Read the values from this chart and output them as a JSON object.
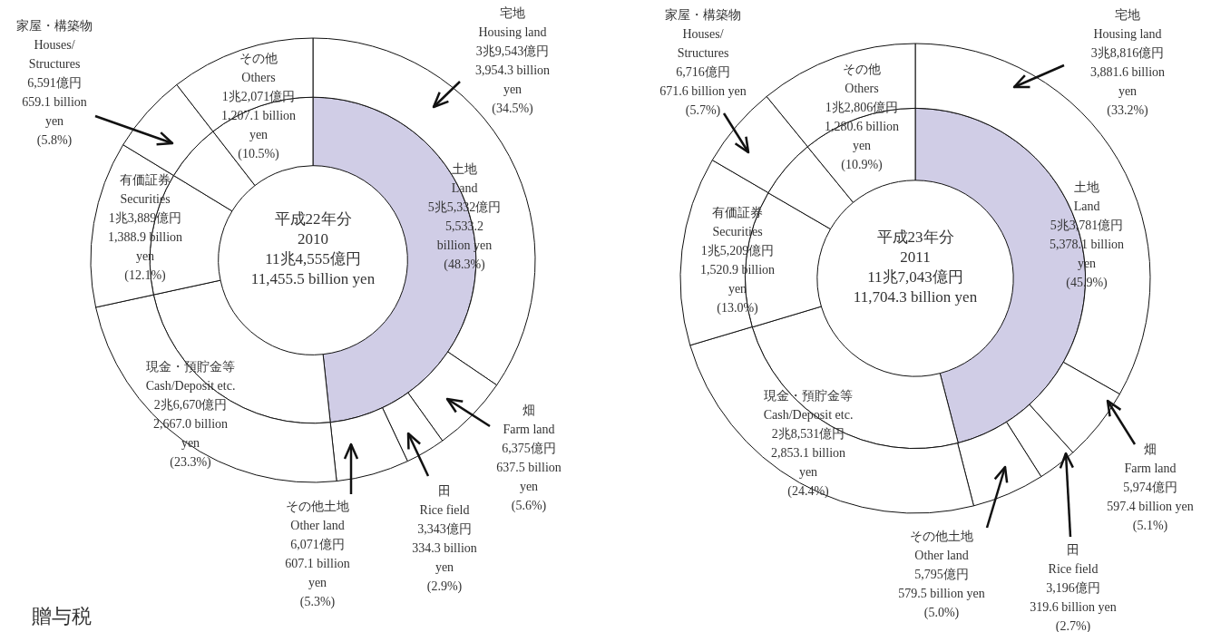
{
  "chart_data": [
    {
      "type": "donut",
      "categories": [
        "宅地\nHousing land",
        "畑\nFarm land",
        "田\nRice field",
        "その他土地\nOther land",
        "現金・預貯金等\nCash/Deposit etc.",
        "有価証券\nSecurities",
        "家屋・構築物\nHouses/\nStructures",
        "その他\nOthers"
      ],
      "series": [
        {
          "values": [
            34.5,
            5.6,
            2.9,
            5.3,
            23.3,
            12.1,
            5.8,
            10.5
          ],
          "colors": [
            "#ffffff",
            "#ffffff",
            "#ffffff",
            "#ffffff",
            "#ffffff",
            "#ffffff",
            "#ffffff",
            "#ffffff"
          ],
          "value_labels": [
            "3兆9,543億円\n3,954.3 billion\nyen\n(34.5%)",
            "6,375億円\n637.5 billion\nyen\n(5.6%)",
            "3,343億円\n334.3 billion\nyen\n(2.9%)",
            "6,071億円\n607.1 billion\nyen\n(5.3%)",
            "2兆6,670億円\n2,667.0 billion\nyen\n(23.3%)",
            "1兆3,889億円\n1,388.9 billion\nyen\n(12.1%)",
            "6,591億円\n659.1 billion\nyen\n(5.8%)",
            "1兆2,071億円\n1,207.1 billion\nyen\n(10.5%)"
          ]
        },
        {
          "name": "土地\nLand",
          "colors": [
            "#d0cde6",
            null,
            null,
            null,
            "#ffffff",
            "#ffffff",
            "#ffffff",
            "#ffffff"
          ],
          "values": [
            48.3,
            null,
            null,
            null,
            23.3,
            12.1,
            5.8,
            10.5
          ],
          "value_labels": [
            "5兆5,332億円\n5,533.2\nbillion yen\n(48.3%)",
            null,
            null,
            null,
            null,
            null,
            null,
            null
          ]
        }
      ],
      "annotations": [
        "平成22年分\n2010\n11兆4,555億円\n11,455.5 billion yen",
        "贈与税"
      ]
    },
    {
      "type": "donut",
      "categories": [
        "宅地\nHousing land",
        "畑\nFarm land",
        "田\nRice field",
        "その他土地\nOther land",
        "現金・預貯金等\nCash/Deposit etc.",
        "有価証券\nSecurities",
        "家屋・構築物\nHouses/\nStructures",
        "その他\nOthers"
      ],
      "series": [
        {
          "values": [
            33.2,
            5.1,
            2.7,
            5.0,
            24.4,
            13.0,
            5.7,
            10.9
          ],
          "colors": [
            "#ffffff",
            "#ffffff",
            "#ffffff",
            "#ffffff",
            "#ffffff",
            "#ffffff",
            "#ffffff",
            "#ffffff"
          ],
          "value_labels": [
            "3兆8,816億円\n3,881.6 billion\nyen\n(33.2%)",
            "5,974億円\n597.4 billion yen\n(5.1%)",
            "3,196億円\n319.6 billion yen\n(2.7%)",
            "5,795億円\n579.5 billion yen\n(5.0%)",
            "2兆8,531億円\n2,853.1 billion\nyen\n(24.4%)",
            "1兆5,209億円\n1,520.9 billion\nyen\n(13.0%)",
            "6,716億円\n671.6 billion yen\n(5.7%)",
            "1兆2,806億円\n1,280.6 billion\nyen\n(10.9%)"
          ]
        },
        {
          "name": "土地\nLand",
          "colors": [
            "#d0cde6",
            null,
            null,
            null,
            "#ffffff",
            "#ffffff",
            "#ffffff",
            "#ffffff"
          ],
          "values": [
            45.9,
            null,
            null,
            null,
            24.4,
            13.0,
            5.7,
            10.9
          ],
          "value_labels": [
            "5兆3,781億円\n5,378.1 billion\nyen\n(45.9%)",
            null,
            null,
            null,
            null,
            null,
            null,
            null
          ]
        }
      ],
      "annotations": [
        "平成23年分\n2011\n11兆7,043億円\n11,704.3 billion yen"
      ]
    }
  ]
}
